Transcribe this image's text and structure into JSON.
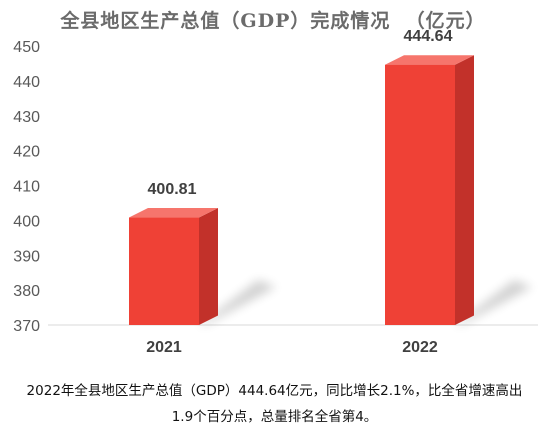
{
  "chart_data": {
    "type": "bar",
    "title": "全县地区生产总值（GDP）完成情况  （亿元）",
    "categories": [
      "2021",
      "2022"
    ],
    "values": [
      400.81,
      444.64
    ],
    "data_labels": [
      "400.81",
      "444.64"
    ],
    "ylim": [
      370,
      450
    ],
    "yticks": [
      370,
      380,
      390,
      400,
      410,
      420,
      430,
      440,
      450
    ],
    "grid": false,
    "legend": "none",
    "bar_color": "#ef4136",
    "bar_side_color": "#c2312a",
    "bar_top_color": "#f6756c"
  },
  "caption": "2022年全县地区生产总值（GDP）444.64亿元，同比增长2.1%，比全省增速高出1.9个百分点，总量排名全省第4。"
}
